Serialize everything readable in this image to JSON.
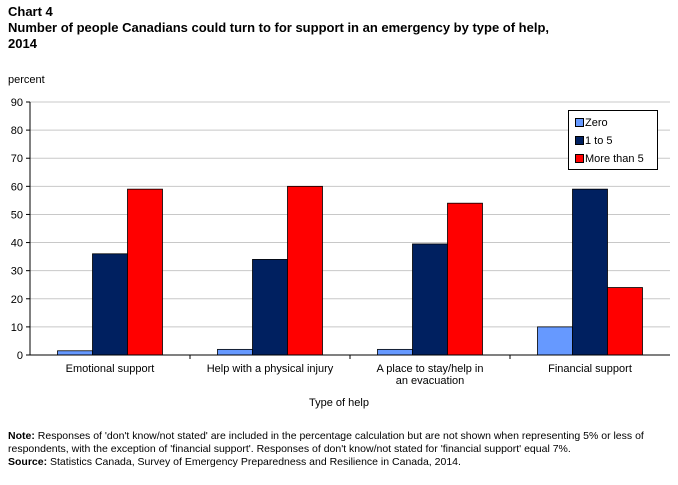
{
  "header": {
    "chart_label": "Chart 4",
    "title": "Number of people Canadians could turn to for support in an emergency by type of help, 2014"
  },
  "y_unit": "percent",
  "colors": {
    "Zero": "#6699ff",
    "1 to 5": "#002060",
    "More than 5": "#ff0000"
  },
  "chart_data": {
    "type": "bar",
    "categories": [
      "Emotional support",
      "Help with a physical injury",
      "A place to stay/help in an evacuation",
      "Financial support"
    ],
    "category_lines": [
      [
        "Emotional support"
      ],
      [
        "Help with a physical injury"
      ],
      [
        "A place to stay/help in",
        "an evacuation"
      ],
      [
        "Financial support"
      ]
    ],
    "series": [
      {
        "name": "Zero",
        "values": [
          1.5,
          2,
          2,
          10
        ]
      },
      {
        "name": "1 to 5",
        "values": [
          36,
          34,
          39.5,
          59
        ]
      },
      {
        "name": "More than 5",
        "values": [
          59,
          60,
          54,
          24
        ]
      }
    ],
    "ylabel": "percent",
    "xlabel": "Type of help",
    "ylim": [
      0,
      90
    ],
    "yticks": [
      0,
      10,
      20,
      30,
      40,
      50,
      60,
      70,
      80,
      90
    ],
    "grid": true,
    "legend_position": "top-right"
  },
  "notes": {
    "note_label": "Note:",
    "note_text": "Responses of 'don't know/not stated' are included in the percentage calculation but are not shown when representing 5% or less of respondents, with the exception of 'financial support'. Responses of don't know/not stated for 'financial support' equal 7%.",
    "source_label": "Source:",
    "source_text": "Statistics Canada, Survey of Emergency Preparedness and Resilience in Canada, 2014."
  }
}
